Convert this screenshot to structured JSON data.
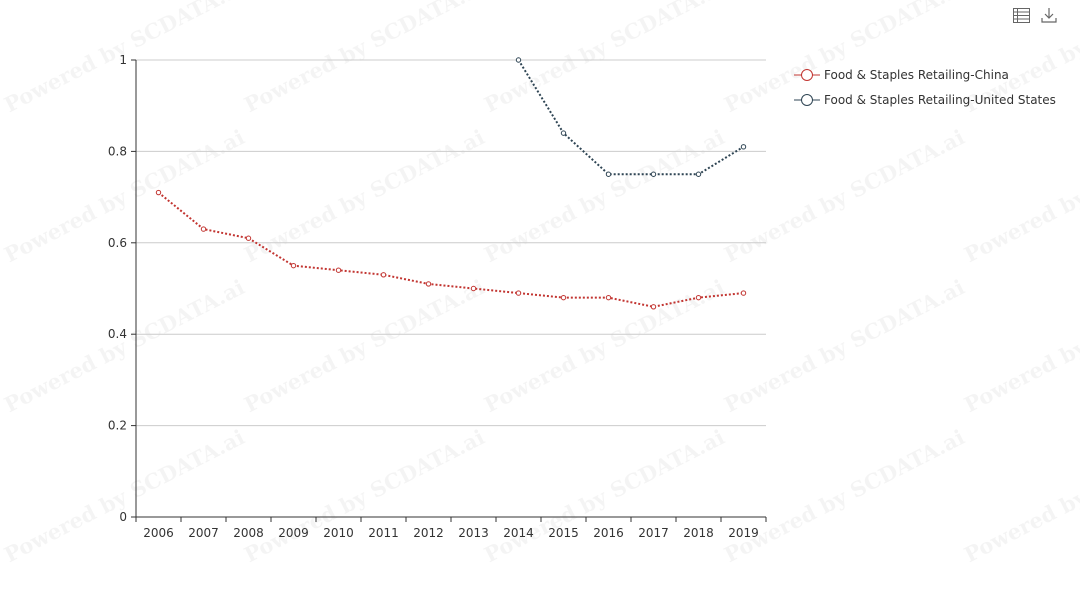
{
  "watermark": "Powered by SCDATA.ai",
  "toolbar": {
    "data_view_icon": "table-icon",
    "download_icon": "download-icon"
  },
  "chart_data": {
    "type": "line",
    "categories": [
      "2006",
      "2007",
      "2008",
      "2009",
      "2010",
      "2011",
      "2012",
      "2013",
      "2014",
      "2015",
      "2016",
      "2017",
      "2018",
      "2019"
    ],
    "ylim": [
      0,
      1
    ],
    "yticks": [
      "0",
      "0.2",
      "0.4",
      "0.6",
      "0.8",
      "1"
    ],
    "grid": true,
    "legend_position": "right",
    "series": [
      {
        "name": "Food & Staples Retailing-China",
        "color": "#c23531",
        "line_style": "dotted",
        "values": [
          0.71,
          0.63,
          0.61,
          0.55,
          0.54,
          0.53,
          0.51,
          0.5,
          0.49,
          0.48,
          0.48,
          0.46,
          0.48,
          0.49
        ]
      },
      {
        "name": "Food & Staples Retailing-United States",
        "color": "#2f4554",
        "line_style": "dotted",
        "values": [
          null,
          null,
          null,
          null,
          null,
          null,
          null,
          null,
          1.0,
          0.84,
          0.75,
          0.75,
          0.75,
          0.81
        ]
      }
    ]
  }
}
